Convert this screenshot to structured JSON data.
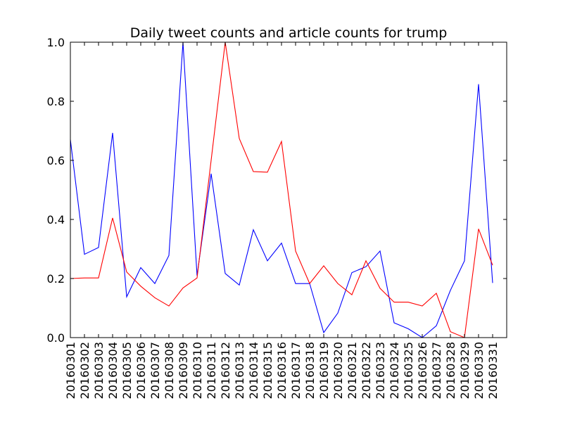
{
  "chart_data": {
    "type": "line",
    "title": "Daily tweet counts and article counts for trump",
    "xlabel": "",
    "ylabel": "",
    "ylim": [
      0,
      1
    ],
    "yticks": [
      "0.0",
      "0.2",
      "0.4",
      "0.6",
      "0.8",
      "1.0"
    ],
    "grid": false,
    "categories": [
      "20160301",
      "20160302",
      "20160303",
      "20160304",
      "20160305",
      "20160306",
      "20160307",
      "20160308",
      "20160309",
      "20160310",
      "20160311",
      "20160312",
      "20160313",
      "20160314",
      "20160315",
      "20160316",
      "20160317",
      "20160318",
      "20160319",
      "20160320",
      "20160321",
      "20160322",
      "20160323",
      "20160324",
      "20160325",
      "20160326",
      "20160327",
      "20160328",
      "20160329",
      "20160330",
      "20160331"
    ],
    "series": [
      {
        "color": "#0000ff",
        "values": [
          0.67,
          0.282,
          0.305,
          0.693,
          0.138,
          0.237,
          0.183,
          0.278,
          1.0,
          0.21,
          0.555,
          0.217,
          0.178,
          0.365,
          0.26,
          0.32,
          0.183,
          0.183,
          0.017,
          0.083,
          0.22,
          0.24,
          0.293,
          0.05,
          0.03,
          0.0,
          0.04,
          0.16,
          0.26,
          0.858,
          0.185
        ]
      },
      {
        "color": "#ff0000",
        "values": [
          0.2,
          0.202,
          0.202,
          0.405,
          0.222,
          0.174,
          0.135,
          0.107,
          0.168,
          0.202,
          0.6,
          1.0,
          0.674,
          0.562,
          0.56,
          0.664,
          0.293,
          0.183,
          0.243,
          0.183,
          0.145,
          0.26,
          0.167,
          0.12,
          0.12,
          0.107,
          0.15,
          0.02,
          0.0,
          0.368,
          0.245
        ]
      }
    ]
  }
}
